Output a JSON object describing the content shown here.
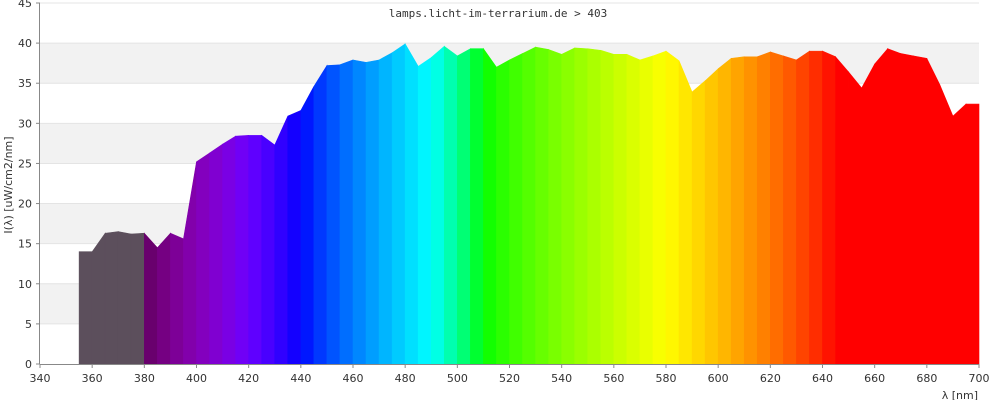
{
  "chart_data": {
    "type": "area",
    "title": "lamps.licht-im-terrarium.de > 403",
    "xlabel": "λ [nm]",
    "ylabel": "I(λ) [uW/cm2/nm]",
    "xlim": [
      340,
      700
    ],
    "ylim": [
      0,
      45
    ],
    "xticks": [
      "340",
      "360",
      "380",
      "400",
      "420",
      "440",
      "460",
      "480",
      "500",
      "520",
      "540",
      "560",
      "580",
      "600",
      "620",
      "640",
      "660",
      "680",
      "700"
    ],
    "yticks": [
      "0",
      "5",
      "10",
      "15",
      "20",
      "25",
      "30",
      "35",
      "40",
      "45"
    ],
    "grid": "horizontal bands",
    "legend": "none",
    "series": [
      {
        "x": [
          355,
          360,
          365,
          370,
          375,
          380,
          385,
          390,
          395,
          400,
          405,
          410,
          415,
          420,
          425,
          430,
          435,
          440,
          445,
          450,
          455,
          460,
          465,
          470,
          475,
          480,
          485,
          490,
          495,
          500,
          505,
          510,
          515,
          520,
          525,
          530,
          535,
          540,
          545,
          550,
          555,
          560,
          565,
          570,
          575,
          580,
          585,
          590,
          595,
          600,
          605,
          610,
          615,
          620,
          625,
          630,
          635,
          640,
          645,
          650,
          655,
          660,
          665,
          670,
          675,
          680,
          685,
          690,
          695,
          700
        ],
        "values": [
          14.0,
          14.0,
          16.3,
          16.5,
          16.2,
          16.3,
          14.5,
          16.3,
          15.6,
          25.2,
          26.3,
          27.4,
          28.4,
          28.5,
          28.5,
          27.3,
          30.9,
          31.6,
          34.6,
          37.2,
          37.3,
          37.9,
          37.6,
          37.9,
          38.8,
          39.9,
          37.1,
          38.2,
          39.6,
          38.4,
          39.3,
          39.3,
          37.0,
          37.9,
          38.7,
          39.5,
          39.2,
          38.6,
          39.4,
          39.3,
          39.1,
          38.6,
          38.6,
          37.9,
          38.4,
          39.0,
          37.8,
          33.9,
          35.3,
          36.8,
          38.1,
          38.3,
          38.3,
          38.9,
          38.4,
          37.9,
          39.0,
          39.0,
          38.3,
          36.4,
          34.4,
          37.4,
          39.3,
          38.7,
          38.4,
          38.1,
          34.8,
          30.9,
          32.4,
          32.4
        ]
      }
    ]
  }
}
